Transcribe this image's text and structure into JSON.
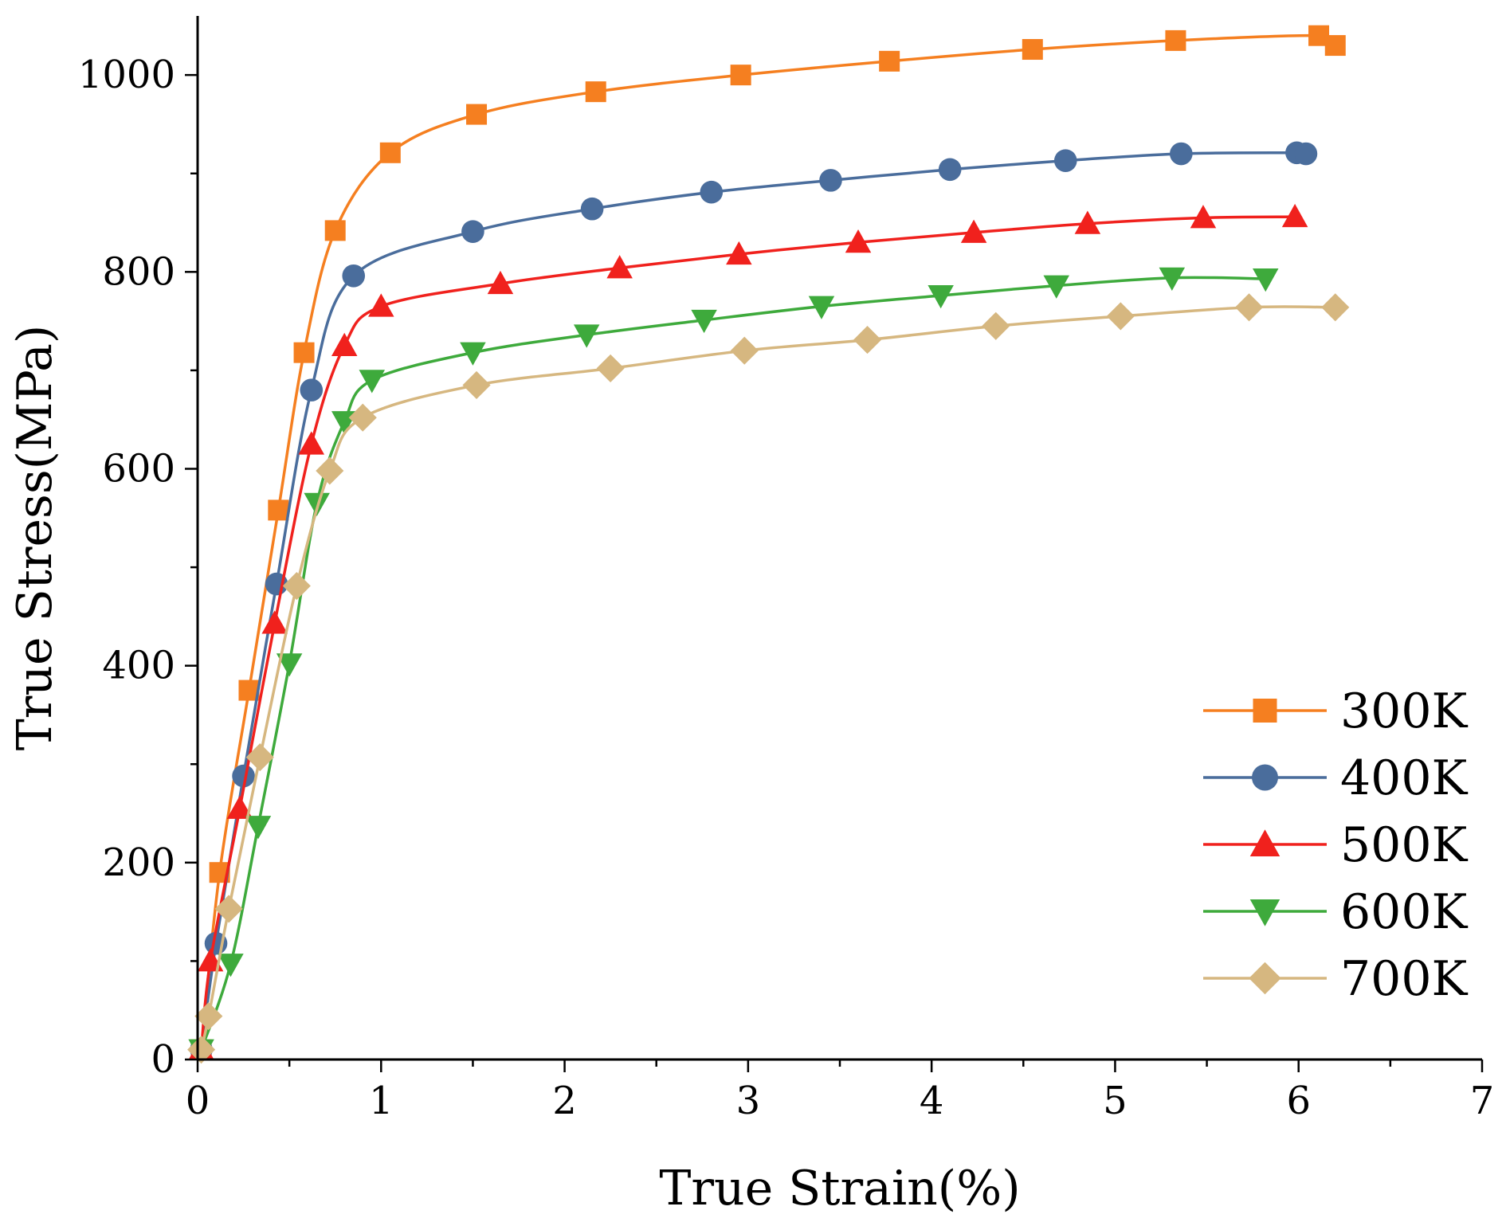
{
  "chart_data": {
    "type": "line",
    "title": "",
    "xlabel": "True Strain(%)",
    "ylabel": "True Stress(MPa)",
    "xlim": [
      0,
      7
    ],
    "ylim": [
      0,
      1060
    ],
    "xticks": [
      0,
      1,
      2,
      3,
      4,
      5,
      6,
      7
    ],
    "yticks": [
      0,
      200,
      400,
      600,
      800,
      1000
    ],
    "grid": false,
    "legend_position": "bottom-right",
    "series": [
      {
        "name": "300K",
        "color": "#F57F20",
        "marker": "square",
        "x": [
          0.02,
          0.12,
          0.28,
          0.44,
          0.58,
          0.75,
          1.05,
          1.52,
          2.17,
          2.96,
          3.77,
          4.55,
          5.33,
          6.11,
          6.2
        ],
        "y": [
          10,
          190,
          375,
          558,
          718,
          842,
          921,
          960,
          983,
          1000,
          1014,
          1026,
          1035,
          1040,
          1030
        ]
      },
      {
        "name": "400K",
        "color": "#4A6D9C",
        "marker": "circle",
        "x": [
          0.02,
          0.1,
          0.25,
          0.43,
          0.62,
          0.85,
          1.5,
          2.15,
          2.8,
          3.45,
          4.1,
          4.73,
          5.36,
          5.99,
          6.04
        ],
        "y": [
          10,
          118,
          288,
          483,
          680,
          796,
          841,
          864,
          881,
          893,
          904,
          913,
          920,
          921,
          920
        ]
      },
      {
        "name": "500K",
        "color": "#F0211D",
        "marker": "triangle-up",
        "x": [
          0.02,
          0.07,
          0.23,
          0.42,
          0.62,
          0.8,
          1.0,
          1.65,
          2.3,
          2.95,
          3.6,
          4.23,
          4.85,
          5.48,
          5.98
        ],
        "y": [
          10,
          100,
          255,
          443,
          625,
          725,
          765,
          788,
          804,
          818,
          830,
          840,
          849,
          855,
          856
        ]
      },
      {
        "name": "600K",
        "color": "#3EAA3C",
        "marker": "triangle-down",
        "x": [
          0.02,
          0.18,
          0.33,
          0.5,
          0.65,
          0.8,
          0.95,
          1.5,
          2.12,
          2.76,
          3.4,
          4.05,
          4.68,
          5.31,
          5.82
        ],
        "y": [
          10,
          97,
          237,
          402,
          565,
          648,
          690,
          718,
          736,
          751,
          765,
          776,
          786,
          794,
          793
        ]
      },
      {
        "name": "700K",
        "color": "#D6B780",
        "marker": "diamond",
        "x": [
          0.02,
          0.06,
          0.17,
          0.34,
          0.54,
          0.72,
          0.9,
          1.52,
          2.25,
          2.98,
          3.65,
          4.35,
          5.03,
          5.73,
          6.2
        ],
        "y": [
          10,
          44,
          153,
          307,
          481,
          598,
          652,
          685,
          702,
          720,
          731,
          745,
          755,
          764,
          764
        ]
      }
    ]
  }
}
